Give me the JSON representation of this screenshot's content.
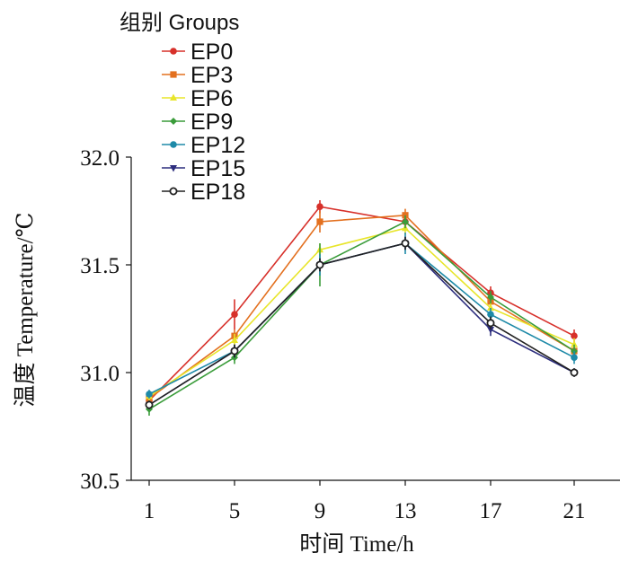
{
  "chart_data": {
    "type": "line",
    "xlabel": "时间 Time/h",
    "ylabel": "温度 Temperature/℃",
    "legend_title": "组别 Groups",
    "legend_position": "top-left",
    "grid": false,
    "x": [
      1,
      5,
      9,
      13,
      17,
      21
    ],
    "x_ticks": [
      "1",
      "5",
      "9",
      "13",
      "17",
      "21"
    ],
    "ylim": [
      30.5,
      32.0
    ],
    "y_ticks": [
      "30.5",
      "31.0",
      "31.5",
      "32.0"
    ],
    "series": [
      {
        "name": "EP0",
        "color": "#d7302a",
        "marker": "circle",
        "values": [
          30.87,
          31.27,
          31.77,
          31.7,
          31.37,
          31.17
        ],
        "err": [
          0.02,
          0.07,
          0.03,
          0.02,
          0.03,
          0.03
        ]
      },
      {
        "name": "EP3",
        "color": "#e3701f",
        "marker": "square",
        "values": [
          30.88,
          31.17,
          31.7,
          31.73,
          31.33,
          31.1
        ],
        "err": [
          0.02,
          0.03,
          0.05,
          0.03,
          0.03,
          0.03
        ]
      },
      {
        "name": "EP6",
        "color": "#e8e52a",
        "marker": "triangle-up",
        "values": [
          30.89,
          31.15,
          31.57,
          31.67,
          31.3,
          31.13
        ],
        "err": [
          0.02,
          0.03,
          0.03,
          0.03,
          0.03,
          0.03
        ]
      },
      {
        "name": "EP9",
        "color": "#3a9c3a",
        "marker": "diamond",
        "values": [
          30.83,
          31.07,
          31.5,
          31.7,
          31.35,
          31.1
        ],
        "err": [
          0.03,
          0.03,
          0.1,
          0.03,
          0.03,
          0.03
        ]
      },
      {
        "name": "EP12",
        "color": "#1e8aa8",
        "marker": "circle",
        "values": [
          30.9,
          31.1,
          31.5,
          31.6,
          31.27,
          31.07
        ],
        "err": [
          0.02,
          0.03,
          0.05,
          0.05,
          0.03,
          0.03
        ]
      },
      {
        "name": "EP15",
        "color": "#2d2e7e",
        "marker": "triangle-down",
        "values": [
          30.85,
          31.1,
          31.5,
          31.6,
          31.2,
          31.0
        ],
        "err": [
          0.02,
          0.03,
          0.03,
          0.03,
          0.03,
          0.02
        ]
      },
      {
        "name": "EP18",
        "color": "#222222",
        "marker": "open-circle",
        "values": [
          30.85,
          31.1,
          31.5,
          31.6,
          31.23,
          31.0
        ],
        "err": [
          0.02,
          0.03,
          0.03,
          0.03,
          0.03,
          0.02
        ]
      }
    ]
  }
}
